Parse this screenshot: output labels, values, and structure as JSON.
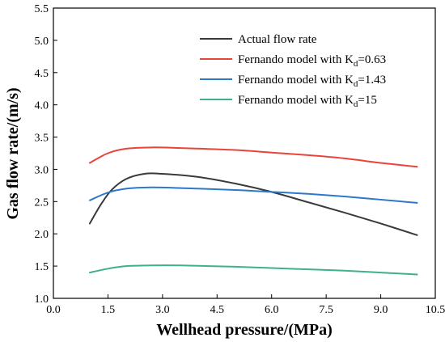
{
  "chart_data": {
    "type": "line",
    "xlabel": "Wellhead pressure/(MPa)",
    "ylabel": "Gas flow rate/(m/s)",
    "xlim": [
      0.0,
      10.5
    ],
    "ylim": [
      1.0,
      5.5
    ],
    "x_ticks": [
      "0.0",
      "1.5",
      "3.0",
      "4.5",
      "6.0",
      "7.5",
      "9.0",
      "10.5"
    ],
    "y_ticks": [
      "1.0",
      "1.5",
      "2.0",
      "2.5",
      "3.0",
      "3.5",
      "4.0",
      "4.5",
      "5.0",
      "5.5"
    ],
    "grid": false,
    "legend_position": "top-right",
    "series": [
      {
        "name": "Actual flow rate",
        "color": "#3a3a3a",
        "points": [
          [
            1.0,
            2.16
          ],
          [
            1.3,
            2.45
          ],
          [
            1.6,
            2.68
          ],
          [
            2.0,
            2.85
          ],
          [
            2.5,
            2.93
          ],
          [
            3.0,
            2.93
          ],
          [
            4.0,
            2.88
          ],
          [
            5.0,
            2.78
          ],
          [
            6.0,
            2.65
          ],
          [
            7.0,
            2.49
          ],
          [
            8.0,
            2.33
          ],
          [
            9.0,
            2.16
          ],
          [
            10.0,
            1.98
          ]
        ]
      },
      {
        "name": "Fernando model with K_d=0.63",
        "name_main": "Fernando model with K",
        "name_sub": "d",
        "name_tail": "=0.63",
        "color": "#e8443a",
        "points": [
          [
            1.0,
            3.1
          ],
          [
            1.5,
            3.25
          ],
          [
            2.0,
            3.32
          ],
          [
            2.7,
            3.34
          ],
          [
            3.5,
            3.33
          ],
          [
            5.0,
            3.3
          ],
          [
            6.0,
            3.26
          ],
          [
            7.0,
            3.22
          ],
          [
            8.0,
            3.17
          ],
          [
            9.0,
            3.1
          ],
          [
            10.0,
            3.04
          ]
        ]
      },
      {
        "name": "Fernando model with K_d=1.43",
        "name_main": "Fernando model with K",
        "name_sub": "d",
        "name_tail": "=1.43",
        "color": "#2e78c8",
        "points": [
          [
            1.0,
            2.52
          ],
          [
            1.5,
            2.64
          ],
          [
            2.0,
            2.7
          ],
          [
            2.7,
            2.72
          ],
          [
            3.5,
            2.71
          ],
          [
            5.0,
            2.68
          ],
          [
            6.0,
            2.65
          ],
          [
            7.0,
            2.62
          ],
          [
            8.0,
            2.58
          ],
          [
            9.0,
            2.53
          ],
          [
            10.0,
            2.48
          ]
        ]
      },
      {
        "name": "Fernando model with K_d=15",
        "name_main": "Fernando model with K",
        "name_sub": "d",
        "name_tail": "=15",
        "color": "#3fb08a",
        "points": [
          [
            1.0,
            1.4
          ],
          [
            1.5,
            1.46
          ],
          [
            2.0,
            1.5
          ],
          [
            2.7,
            1.51
          ],
          [
            3.5,
            1.51
          ],
          [
            5.0,
            1.49
          ],
          [
            6.0,
            1.47
          ],
          [
            7.0,
            1.45
          ],
          [
            8.0,
            1.43
          ],
          [
            9.0,
            1.4
          ],
          [
            10.0,
            1.37
          ]
        ]
      }
    ]
  }
}
